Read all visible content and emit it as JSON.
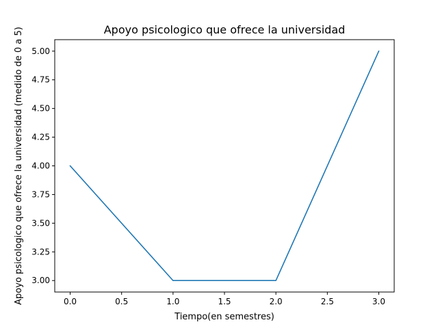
{
  "chart_data": {
    "type": "line",
    "title": "Apoyo psicologico que ofrece la universidad",
    "xlabel": "Tiempo(en semestres)",
    "ylabel": "Apoyo psicologico que ofrece la universidad (medido de 0 a 5)",
    "x": [
      0.0,
      1.0,
      2.0,
      3.0
    ],
    "series": [
      {
        "values": [
          4.0,
          3.0,
          3.0,
          5.0
        ],
        "color": "#1f77b4"
      }
    ],
    "xlim": [
      -0.15,
      3.15
    ],
    "ylim": [
      2.9,
      5.1
    ],
    "xticks": [
      0.0,
      0.5,
      1.0,
      1.5,
      2.0,
      2.5,
      3.0
    ],
    "xtick_labels": [
      "0.0",
      "0.5",
      "1.0",
      "1.5",
      "2.0",
      "2.5",
      "3.0"
    ],
    "yticks": [
      3.0,
      3.25,
      3.5,
      3.75,
      4.0,
      4.25,
      4.5,
      4.75,
      5.0
    ],
    "ytick_labels": [
      "3.00",
      "3.25",
      "3.50",
      "3.75",
      "4.00",
      "4.25",
      "4.50",
      "4.75",
      "5.00"
    ],
    "grid": false,
    "legend": false
  }
}
